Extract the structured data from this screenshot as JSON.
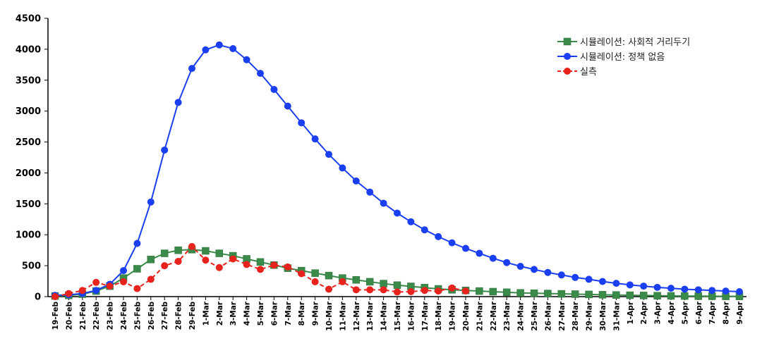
{
  "chart_data": {
    "type": "line",
    "categories": [
      "19-Feb",
      "20-Feb",
      "21-Feb",
      "22-Feb",
      "23-Feb",
      "24-Feb",
      "25-Feb",
      "26-Feb",
      "27-Feb",
      "28-Feb",
      "29-Feb",
      "1-Mar",
      "2-Mar",
      "3-Mar",
      "4-Mar",
      "5-Mar",
      "6-Mar",
      "7-Mar",
      "8-Mar",
      "9-Mar",
      "10-Mar",
      "11-Mar",
      "12-Mar",
      "13-Mar",
      "14-Mar",
      "15-Mar",
      "16-Mar",
      "17-Mar",
      "18-Mar",
      "19-Mar",
      "20-Mar",
      "21-Mar",
      "22-Mar",
      "23-Mar",
      "24-Mar",
      "25-Mar",
      "26-Mar",
      "27-Mar",
      "28-Mar",
      "29-Mar",
      "30-Mar",
      "31-Mar",
      "1-Apr",
      "2-Apr",
      "3-Apr",
      "4-Apr",
      "5-Apr",
      "6-Apr",
      "7-Apr",
      "8-Apr",
      "9-Apr"
    ],
    "ylim": [
      0,
      4500
    ],
    "yticks": [
      0,
      500,
      1000,
      1500,
      2000,
      2500,
      3000,
      3500,
      4000,
      4500
    ],
    "legend_position": "top-right",
    "grid": false,
    "series": [
      {
        "name": "시뮬레이션: 사회적 거리두기",
        "color": "#3a8a4a",
        "marker": "square",
        "line_style": "solid",
        "values": [
          10,
          20,
          40,
          90,
          170,
          300,
          450,
          600,
          700,
          750,
          760,
          740,
          700,
          660,
          610,
          560,
          510,
          460,
          420,
          380,
          340,
          300,
          270,
          240,
          210,
          185,
          165,
          145,
          125,
          110,
          100,
          90,
          80,
          70,
          60,
          55,
          50,
          45,
          40,
          35,
          30,
          26,
          22,
          18,
          15,
          12,
          10,
          8,
          6,
          5,
          4
        ]
      },
      {
        "name": "시뮬레이션: 정책 없음",
        "color": "#1a3ff0",
        "marker": "circle",
        "line_style": "solid",
        "values": [
          20,
          30,
          50,
          100,
          200,
          420,
          860,
          1530,
          2370,
          3140,
          3690,
          3990,
          4070,
          4010,
          3830,
          3610,
          3350,
          3080,
          2810,
          2550,
          2300,
          2080,
          1870,
          1690,
          1510,
          1350,
          1210,
          1080,
          970,
          870,
          780,
          700,
          620,
          550,
          490,
          440,
          390,
          350,
          310,
          280,
          245,
          215,
          190,
          170,
          150,
          135,
          120,
          110,
          100,
          90,
          80
        ]
      },
      {
        "name": "실측",
        "color": "#e8231e",
        "marker": "circle",
        "line_style": "dashed",
        "values": [
          0,
          50,
          100,
          230,
          170,
          240,
          130,
          280,
          500,
          570,
          810,
          590,
          470,
          610,
          520,
          440,
          510,
          480,
          370,
          240,
          120,
          240,
          110,
          110,
          110,
          75,
          80,
          100,
          90,
          140,
          90,
          null,
          null,
          null,
          null,
          null,
          null,
          null,
          null,
          null,
          null,
          null,
          null,
          null,
          null,
          null,
          null,
          null,
          null,
          null,
          null
        ]
      }
    ]
  }
}
